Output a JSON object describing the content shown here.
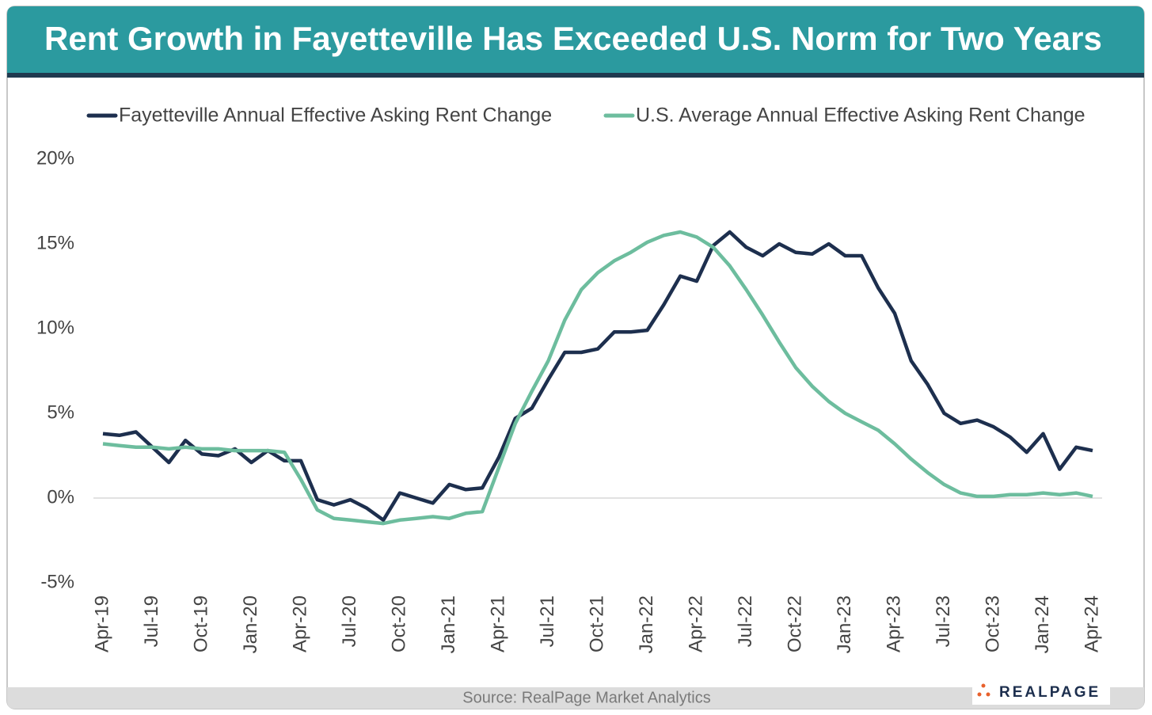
{
  "chart_data": {
    "type": "line",
    "title": "Rent Growth in Fayetteville Has Exceeded U.S. Norm for Two Years",
    "source": "Source: RealPage Market Analytics",
    "logo": "REALPAGE",
    "categories": [
      "Apr-19",
      null,
      null,
      "Jul-19",
      null,
      null,
      "Oct-19",
      null,
      null,
      "Jan-20",
      null,
      null,
      "Apr-20",
      null,
      null,
      "Jul-20",
      null,
      null,
      "Oct-20",
      null,
      null,
      "Jan-21",
      null,
      null,
      "Apr-21",
      null,
      null,
      "Jul-21",
      null,
      null,
      "Oct-21",
      null,
      null,
      "Jan-22",
      null,
      null,
      "Apr-22",
      null,
      null,
      "Jul-22",
      null,
      null,
      "Oct-22",
      null,
      null,
      "Jan-23",
      null,
      null,
      "Apr-23",
      null,
      null,
      "Jul-23",
      null,
      null,
      "Oct-23",
      null,
      null,
      "Jan-24",
      null,
      null,
      "Apr-24"
    ],
    "series": [
      {
        "name": "Fayetteville Annual Effective Asking Rent Change",
        "color": "#1d2f4e",
        "values": [
          3.8,
          3.7,
          3.9,
          3.0,
          2.1,
          3.4,
          2.6,
          2.5,
          2.9,
          2.1,
          2.8,
          2.2,
          2.2,
          -0.1,
          -0.4,
          -0.1,
          -0.6,
          -1.3,
          0.3,
          0.0,
          -0.3,
          0.8,
          0.5,
          0.6,
          2.4,
          4.7,
          5.3,
          7.0,
          8.6,
          8.6,
          8.8,
          9.8,
          9.8,
          9.9,
          11.4,
          13.1,
          12.8,
          14.9,
          15.7,
          14.8,
          14.3,
          15.0,
          14.5,
          14.4,
          15.0,
          14.3,
          14.3,
          12.4,
          10.9,
          8.1,
          6.7,
          5.0,
          4.4,
          4.6,
          4.2,
          3.6,
          2.7,
          3.8,
          1.7,
          3.0,
          2.8
        ]
      },
      {
        "name": "U.S. Average Annual Effective Asking Rent Change",
        "color": "#6dbd9e",
        "values": [
          3.2,
          3.1,
          3.0,
          3.0,
          2.9,
          3.0,
          2.9,
          2.9,
          2.8,
          2.8,
          2.8,
          2.7,
          1.1,
          -0.7,
          -1.2,
          -1.3,
          -1.4,
          -1.5,
          -1.3,
          -1.2,
          -1.1,
          -1.2,
          -0.9,
          -0.8,
          1.8,
          4.4,
          6.3,
          8.1,
          10.5,
          12.3,
          13.3,
          14.0,
          14.5,
          15.1,
          15.5,
          15.7,
          15.4,
          14.8,
          13.7,
          12.3,
          10.8,
          9.2,
          7.7,
          6.6,
          5.7,
          5.0,
          4.5,
          4.0,
          3.2,
          2.3,
          1.5,
          0.8,
          0.3,
          0.1,
          0.1,
          0.2,
          0.2,
          0.3,
          0.2,
          0.3,
          0.1
        ]
      }
    ],
    "ylim": [
      -5,
      20
    ],
    "yticks": [
      {
        "value": 20,
        "label": "20%"
      },
      {
        "value": 15,
        "label": "15%"
      },
      {
        "value": 10,
        "label": "10%"
      },
      {
        "value": 5,
        "label": "5%"
      },
      {
        "value": 0,
        "label": "0%"
      },
      {
        "value": -5,
        "label": "-5%"
      }
    ],
    "zero_line": true,
    "legend": "top"
  }
}
